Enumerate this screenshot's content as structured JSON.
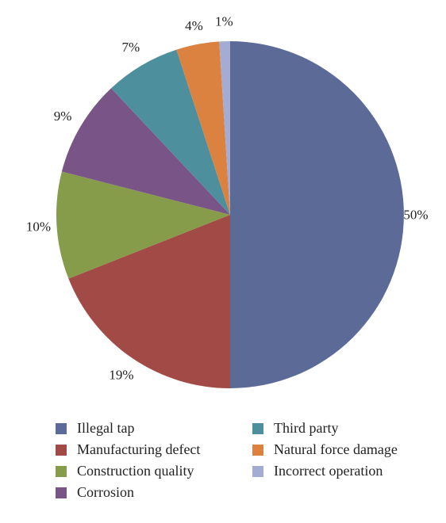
{
  "chart_data": {
    "type": "pie",
    "categories": [
      "Illegal tap",
      "Manufacturing defect",
      "Construction quality",
      "Corrosion",
      "Third party",
      "Natural force damage",
      "Incorrect operation"
    ],
    "values": [
      50,
      19,
      10,
      9,
      7,
      4,
      1
    ],
    "value_labels": [
      "50%",
      "19%",
      "10%",
      "9%",
      "7%",
      "4%",
      "1%"
    ],
    "colors": [
      "#5b6a97",
      "#a24a46",
      "#879c4b",
      "#795587",
      "#4e8f9d",
      "#dc8240",
      "#a4acd4"
    ],
    "start": "12 o'clock",
    "direction": "clockwise",
    "legend_position": "bottom"
  }
}
